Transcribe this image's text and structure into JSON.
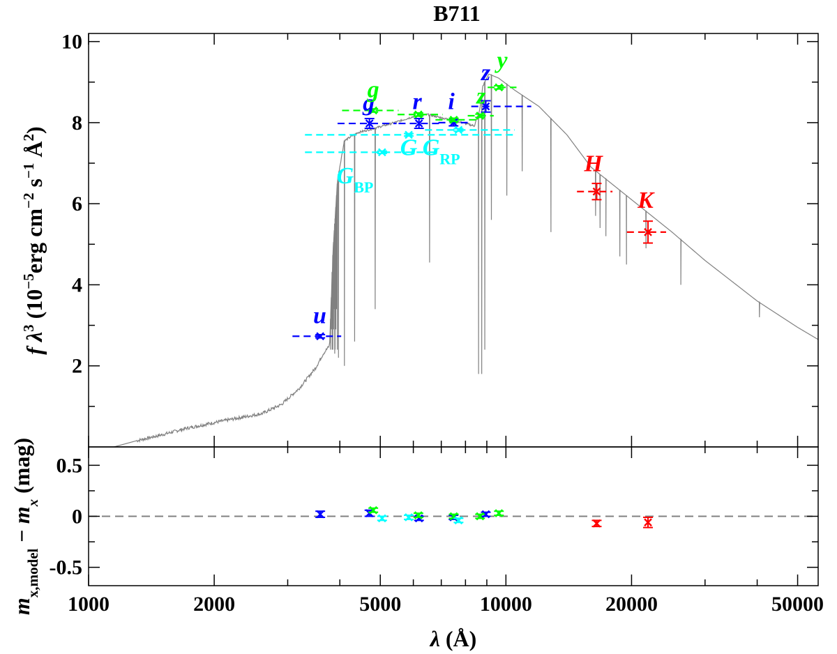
{
  "chart_data": {
    "type": "scatter",
    "title": "B711",
    "x_scale": "log",
    "xlim": [
      1000,
      56000
    ],
    "x_ticks": [
      "1000",
      "2000",
      "5000",
      "10000",
      "20000",
      "50000"
    ],
    "xlabel": {
      "main": "λ",
      "rest": " (Å)"
    },
    "panels": {
      "top": {
        "ylim": [
          0,
          10.2
        ],
        "y_ticks": [
          "2",
          "4",
          "6",
          "8",
          "10"
        ],
        "ylabel": {
          "lead": "f λ",
          "s1": "3",
          "p1": " (10",
          "s2": "−5",
          "p2": "erg cm",
          "s3": "−2",
          "p3": " s",
          "s4": "−1",
          "p4": " Å",
          "s5": "2",
          "p5": ")"
        },
        "model_spectrum": {
          "color": "#808080",
          "knots": [
            [
              1150,
              0
            ],
            [
              1300,
              0.15
            ],
            [
              1500,
              0.3
            ],
            [
              1700,
              0.45
            ],
            [
              2000,
              0.6
            ],
            [
              2300,
              0.72
            ],
            [
              2600,
              0.82
            ],
            [
              2900,
              1.05
            ],
            [
              3200,
              1.45
            ],
            [
              3500,
              1.95
            ],
            [
              3650,
              2.3
            ],
            [
              3780,
              2.5
            ],
            [
              3850,
              4.8
            ],
            [
              3950,
              6.6
            ],
            [
              4100,
              7.55
            ],
            [
              4400,
              7.75
            ],
            [
              4800,
              7.85
            ],
            [
              5200,
              7.95
            ],
            [
              5600,
              8.05
            ],
            [
              6000,
              8.15
            ],
            [
              6500,
              8.2
            ],
            [
              7000,
              8.12
            ],
            [
              7500,
              8.05
            ],
            [
              8000,
              7.98
            ],
            [
              8400,
              7.92
            ],
            [
              8650,
              8.3
            ],
            [
              8800,
              8.9
            ],
            [
              9100,
              9.2
            ],
            [
              9600,
              9.1
            ],
            [
              10500,
              8.8
            ],
            [
              12000,
              8.4
            ],
            [
              14000,
              7.7
            ],
            [
              16000,
              6.9
            ],
            [
              20000,
              6.1
            ],
            [
              25000,
              5.3
            ],
            [
              30000,
              4.6
            ],
            [
              40000,
              3.6
            ],
            [
              50000,
              2.95
            ],
            [
              56000,
              2.65
            ]
          ],
          "lines": [
            [
              3835,
              2.4
            ],
            [
              3889,
              2.3
            ],
            [
              3970,
              2.2
            ],
            [
              4102,
              2.0
            ],
            [
              4340,
              2.6
            ],
            [
              4861,
              3.4
            ],
            [
              6563,
              4.55
            ],
            [
              8600,
              1.8
            ],
            [
              8750,
              1.8
            ],
            [
              8900,
              2.4
            ],
            [
              9230,
              5.6
            ],
            [
              10050,
              6.2
            ],
            [
              10940,
              6.8
            ],
            [
              12820,
              5.3
            ],
            [
              16400,
              5.7
            ],
            [
              16810,
              5.4
            ],
            [
              17360,
              5.2
            ],
            [
              18750,
              4.7
            ],
            [
              19450,
              4.5
            ],
            [
              21660,
              4.9
            ],
            [
              26250,
              4.0
            ],
            [
              40500,
              3.2
            ]
          ]
        },
        "photometry": [
          {
            "band": "u",
            "color": "#0000ff",
            "x": 3590,
            "y": 2.73,
            "x_lo": 3080,
            "x_hi": 4030,
            "yerr": 0.04
          },
          {
            "band": "g",
            "color": "#0000ff",
            "x": 4710,
            "y": 7.98,
            "x_lo": 3950,
            "x_hi": 5470,
            "yerr": 0.12
          },
          {
            "band": "r",
            "color": "#0000ff",
            "x": 6190,
            "y": 7.98,
            "x_lo": 5530,
            "x_hi": 6950,
            "yerr": 0.12
          },
          {
            "band": "i",
            "color": "#0000ff",
            "x": 7490,
            "y": 8.0,
            "x_lo": 6890,
            "x_hi": 8230,
            "yerr": 0.08
          },
          {
            "band": "z",
            "color": "#0000ff",
            "x": 8950,
            "y": 8.4,
            "x_lo": 8260,
            "x_hi": 11500,
            "yerr": 0.14
          },
          {
            "band": "g",
            "color": "#00ff00",
            "x": 4810,
            "y": 8.3,
            "x_lo": 4050,
            "x_hi": 5530,
            "yerr": 0.04
          },
          {
            "band": "r",
            "color": "#00ff00",
            "x": 6170,
            "y": 8.2,
            "x_lo": 5500,
            "x_hi": 7050,
            "yerr": 0.04
          },
          {
            "band": "i",
            "color": "#00ff00",
            "x": 7500,
            "y": 8.07,
            "x_lo": 6780,
            "x_hi": 8500,
            "yerr": 0.04
          },
          {
            "band": "z",
            "color": "#00ff00",
            "x": 8670,
            "y": 8.17,
            "x_lo": 8100,
            "x_hi": 9350,
            "yerr": 0.04
          },
          {
            "band": "y",
            "color": "#00ff00",
            "x": 9620,
            "y": 8.87,
            "x_lo": 9040,
            "x_hi": 10600,
            "yerr": 0.04
          },
          {
            "band": "G",
            "color": "#00ffff",
            "x": 5850,
            "y": 7.7,
            "x_lo": 3300,
            "x_hi": 10500,
            "yerr": 0.03
          },
          {
            "band": "G_BP",
            "color": "#00ffff",
            "x": 5050,
            "y": 7.27,
            "x_lo": 3300,
            "x_hi": 6800,
            "yerr": 0.03
          },
          {
            "band": "G_RP",
            "color": "#00ffff",
            "x": 7700,
            "y": 7.82,
            "x_lo": 6400,
            "x_hi": 10500,
            "yerr": 0.03
          },
          {
            "band": "H",
            "color": "#ff0000",
            "x": 16500,
            "y": 6.3,
            "x_lo": 14800,
            "x_hi": 18000,
            "yerr": 0.2
          },
          {
            "band": "K",
            "color": "#ff0000",
            "x": 21900,
            "y": 5.3,
            "x_lo": 19500,
            "x_hi": 24200,
            "yerr": 0.27
          }
        ],
        "band_labels": [
          {
            "text": "u",
            "color": "#0000ff",
            "x": 3580,
            "y": 3.05
          },
          {
            "text": "g",
            "color": "#0000ff",
            "x": 4690,
            "y": 8.3
          },
          {
            "text": "r",
            "color": "#0000ff",
            "x": 6130,
            "y": 8.33
          },
          {
            "text": "i",
            "color": "#0000ff",
            "x": 7400,
            "y": 8.33
          },
          {
            "text": "z",
            "color": "#0000ff",
            "x": 8950,
            "y": 9.05
          },
          {
            "text": "g",
            "color": "#00ff00",
            "x": 4810,
            "y": 8.63
          },
          {
            "text": "z",
            "color": "#00ff00",
            "x": 8720,
            "y": 8.47
          },
          {
            "text": "y",
            "color": "#00ff00",
            "x": 9800,
            "y": 9.35
          },
          {
            "text": "G",
            "color": "#00ffff",
            "x": 5850,
            "y": 7.2
          },
          {
            "text": "G",
            "sub": "BP",
            "color": "#00ffff",
            "x": 4350,
            "y": 6.5
          },
          {
            "text": "G",
            "sub": "RP",
            "color": "#00ffff",
            "x": 7000,
            "y": 7.2
          },
          {
            "text": "H",
            "color": "#ff0000",
            "x": 16200,
            "y": 6.8
          },
          {
            "text": "K",
            "color": "#ff0000",
            "x": 21600,
            "y": 5.9
          }
        ]
      },
      "bottom": {
        "ylim": [
          -0.68,
          0.68
        ],
        "y_ticks": [
          "0.5",
          "0",
          "-0.5"
        ],
        "ylabel": {
          "lead": "m",
          "s1": "x,model",
          "mid": " − m",
          "s2": "x",
          "tail": " (mag)"
        },
        "zero_line": {
          "y": 0,
          "color": "#808080"
        },
        "residuals": [
          {
            "color": "#0000ff",
            "x": 3590,
            "y": 0.02,
            "yerr": 0.03
          },
          {
            "color": "#0000ff",
            "x": 4710,
            "y": 0.03,
            "yerr": 0.03
          },
          {
            "color": "#0000ff",
            "x": 6190,
            "y": -0.02,
            "yerr": 0.02
          },
          {
            "color": "#0000ff",
            "x": 7490,
            "y": -0.01,
            "yerr": 0.02
          },
          {
            "color": "#0000ff",
            "x": 8950,
            "y": 0.02,
            "yerr": 0.02
          },
          {
            "color": "#00ff00",
            "x": 4810,
            "y": 0.06,
            "yerr": 0.02
          },
          {
            "color": "#00ff00",
            "x": 6170,
            "y": 0.01,
            "yerr": 0.02
          },
          {
            "color": "#00ff00",
            "x": 7500,
            "y": 0.0,
            "yerr": 0.02
          },
          {
            "color": "#00ff00",
            "x": 8670,
            "y": 0.0,
            "yerr": 0.02
          },
          {
            "color": "#00ff00",
            "x": 9620,
            "y": 0.03,
            "yerr": 0.02
          },
          {
            "color": "#00ffff",
            "x": 5050,
            "y": -0.02,
            "yerr": 0.02
          },
          {
            "color": "#00ffff",
            "x": 5850,
            "y": -0.01,
            "yerr": 0.02
          },
          {
            "color": "#00ffff",
            "x": 7700,
            "y": -0.04,
            "yerr": 0.02
          },
          {
            "color": "#ff0000",
            "x": 16500,
            "y": -0.07,
            "yerr": 0.03
          },
          {
            "color": "#ff0000",
            "x": 21900,
            "y": -0.06,
            "yerr": 0.05
          }
        ]
      }
    },
    "grid": false,
    "legend": "none"
  }
}
